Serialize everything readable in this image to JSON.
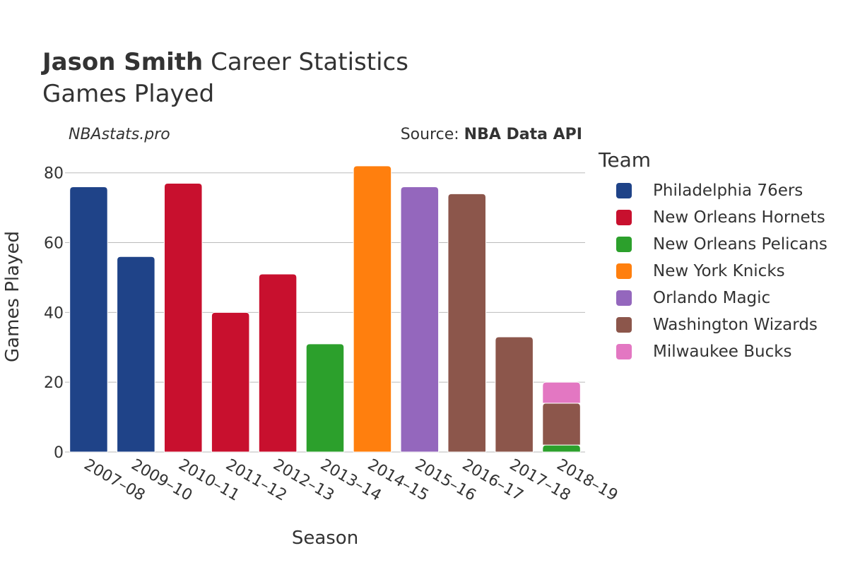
{
  "header": {
    "title_bold": "Jason Smith",
    "title_rest": " Career Statistics",
    "subtitle": "Games Played",
    "watermark": "NBAstats.pro",
    "source_prefix": "Source: ",
    "source_bold": "NBA Data API"
  },
  "legend": {
    "title": "Team",
    "items": [
      {
        "label": "Philadelphia 76ers",
        "color": "#1f4388"
      },
      {
        "label": "New Orleans Hornets",
        "color": "#c8102e"
      },
      {
        "label": "New Orleans Pelicans",
        "color": "#2ca02c"
      },
      {
        "label": "New York Knicks",
        "color": "#ff7f0e"
      },
      {
        "label": "Orlando Magic",
        "color": "#9467bd"
      },
      {
        "label": "Washington Wizards",
        "color": "#8c564b"
      },
      {
        "label": "Milwaukee Bucks",
        "color": "#e377c2"
      }
    ]
  },
  "chart_data": {
    "type": "bar",
    "stacked": true,
    "xlabel": "Season",
    "ylabel": "Games Played",
    "ylim": [
      0,
      85
    ],
    "yticks": [
      0,
      20,
      40,
      60,
      80
    ],
    "categories": [
      "2007–08",
      "2009–10",
      "2010–11",
      "2011–12",
      "2012–13",
      "2013–14",
      "2014–15",
      "2015–16",
      "2016–17",
      "2017–18",
      "2018–19"
    ],
    "series": [
      {
        "name": "Philadelphia 76ers",
        "color": "#1f4388",
        "values": [
          76,
          56,
          0,
          0,
          0,
          0,
          0,
          0,
          0,
          0,
          0
        ]
      },
      {
        "name": "New Orleans Hornets",
        "color": "#c8102e",
        "values": [
          0,
          0,
          77,
          40,
          51,
          0,
          0,
          0,
          0,
          0,
          0
        ]
      },
      {
        "name": "New Orleans Pelicans",
        "color": "#2ca02c",
        "values": [
          0,
          0,
          0,
          0,
          0,
          31,
          0,
          0,
          0,
          0,
          2
        ]
      },
      {
        "name": "New York Knicks",
        "color": "#ff7f0e",
        "values": [
          0,
          0,
          0,
          0,
          0,
          0,
          82,
          0,
          0,
          0,
          0
        ]
      },
      {
        "name": "Orlando Magic",
        "color": "#9467bd",
        "values": [
          0,
          0,
          0,
          0,
          0,
          0,
          0,
          76,
          0,
          0,
          0
        ]
      },
      {
        "name": "Washington Wizards",
        "color": "#8c564b",
        "values": [
          0,
          0,
          0,
          0,
          0,
          0,
          0,
          0,
          74,
          33,
          12
        ]
      },
      {
        "name": "Milwaukee Bucks",
        "color": "#e377c2",
        "values": [
          0,
          0,
          0,
          0,
          0,
          0,
          0,
          0,
          0,
          0,
          6
        ]
      }
    ],
    "grid": true,
    "legend_position": "right"
  }
}
